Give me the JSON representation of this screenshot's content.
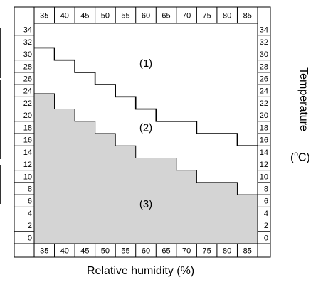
{
  "chart_data": {
    "type": "area",
    "xlabel": "Relative humidity (%)",
    "ylabel": "Temperature",
    "yunit": {
      "prefix": "(",
      "sup": "o",
      "suffix": "C)"
    },
    "x_ticks": [
      35,
      40,
      45,
      50,
      55,
      60,
      65,
      70,
      75,
      80,
      85
    ],
    "y_ticks": [
      0,
      2,
      4,
      6,
      8,
      10,
      12,
      14,
      16,
      18,
      20,
      22,
      24,
      26,
      28,
      30,
      32,
      34
    ],
    "xlim": [
      32.5,
      87.5
    ],
    "ylim": [
      -1,
      35
    ],
    "grid": false,
    "series": [
      {
        "step_upper_line": [
          [
            32.5,
            31
          ],
          [
            37.5,
            31
          ],
          [
            37.5,
            29
          ],
          [
            42.5,
            29
          ],
          [
            42.5,
            27
          ],
          [
            47.5,
            27
          ],
          [
            47.5,
            25
          ],
          [
            52.5,
            25
          ],
          [
            52.5,
            23
          ],
          [
            57.5,
            23
          ],
          [
            57.5,
            21
          ],
          [
            62.5,
            21
          ],
          [
            62.5,
            19
          ],
          [
            72.5,
            19
          ],
          [
            72.5,
            17
          ],
          [
            82.5,
            17
          ],
          [
            82.5,
            15
          ],
          [
            87.5,
            15
          ]
        ],
        "shaded_area_boundary": [
          [
            32.5,
            23.5
          ],
          [
            37.5,
            23.5
          ],
          [
            37.5,
            21
          ],
          [
            42.5,
            21
          ],
          [
            42.5,
            19
          ],
          [
            47.5,
            19
          ],
          [
            47.5,
            17
          ],
          [
            52.5,
            17
          ],
          [
            52.5,
            15
          ],
          [
            57.5,
            15
          ],
          [
            57.5,
            13
          ],
          [
            67.5,
            13
          ],
          [
            67.5,
            11
          ],
          [
            72.5,
            11
          ],
          [
            72.5,
            9
          ],
          [
            82.5,
            9
          ],
          [
            82.5,
            7
          ],
          [
            87.5,
            7
          ]
        ]
      }
    ],
    "annotations": [
      {
        "text": "(1)",
        "x": 60,
        "y": 28.5
      },
      {
        "text": "(2)",
        "x": 60,
        "y": 18
      },
      {
        "text": "(3)",
        "x": 60,
        "y": 5.5
      }
    ],
    "colors": {
      "shade": "#d4d4d4",
      "line": "#000000"
    }
  }
}
